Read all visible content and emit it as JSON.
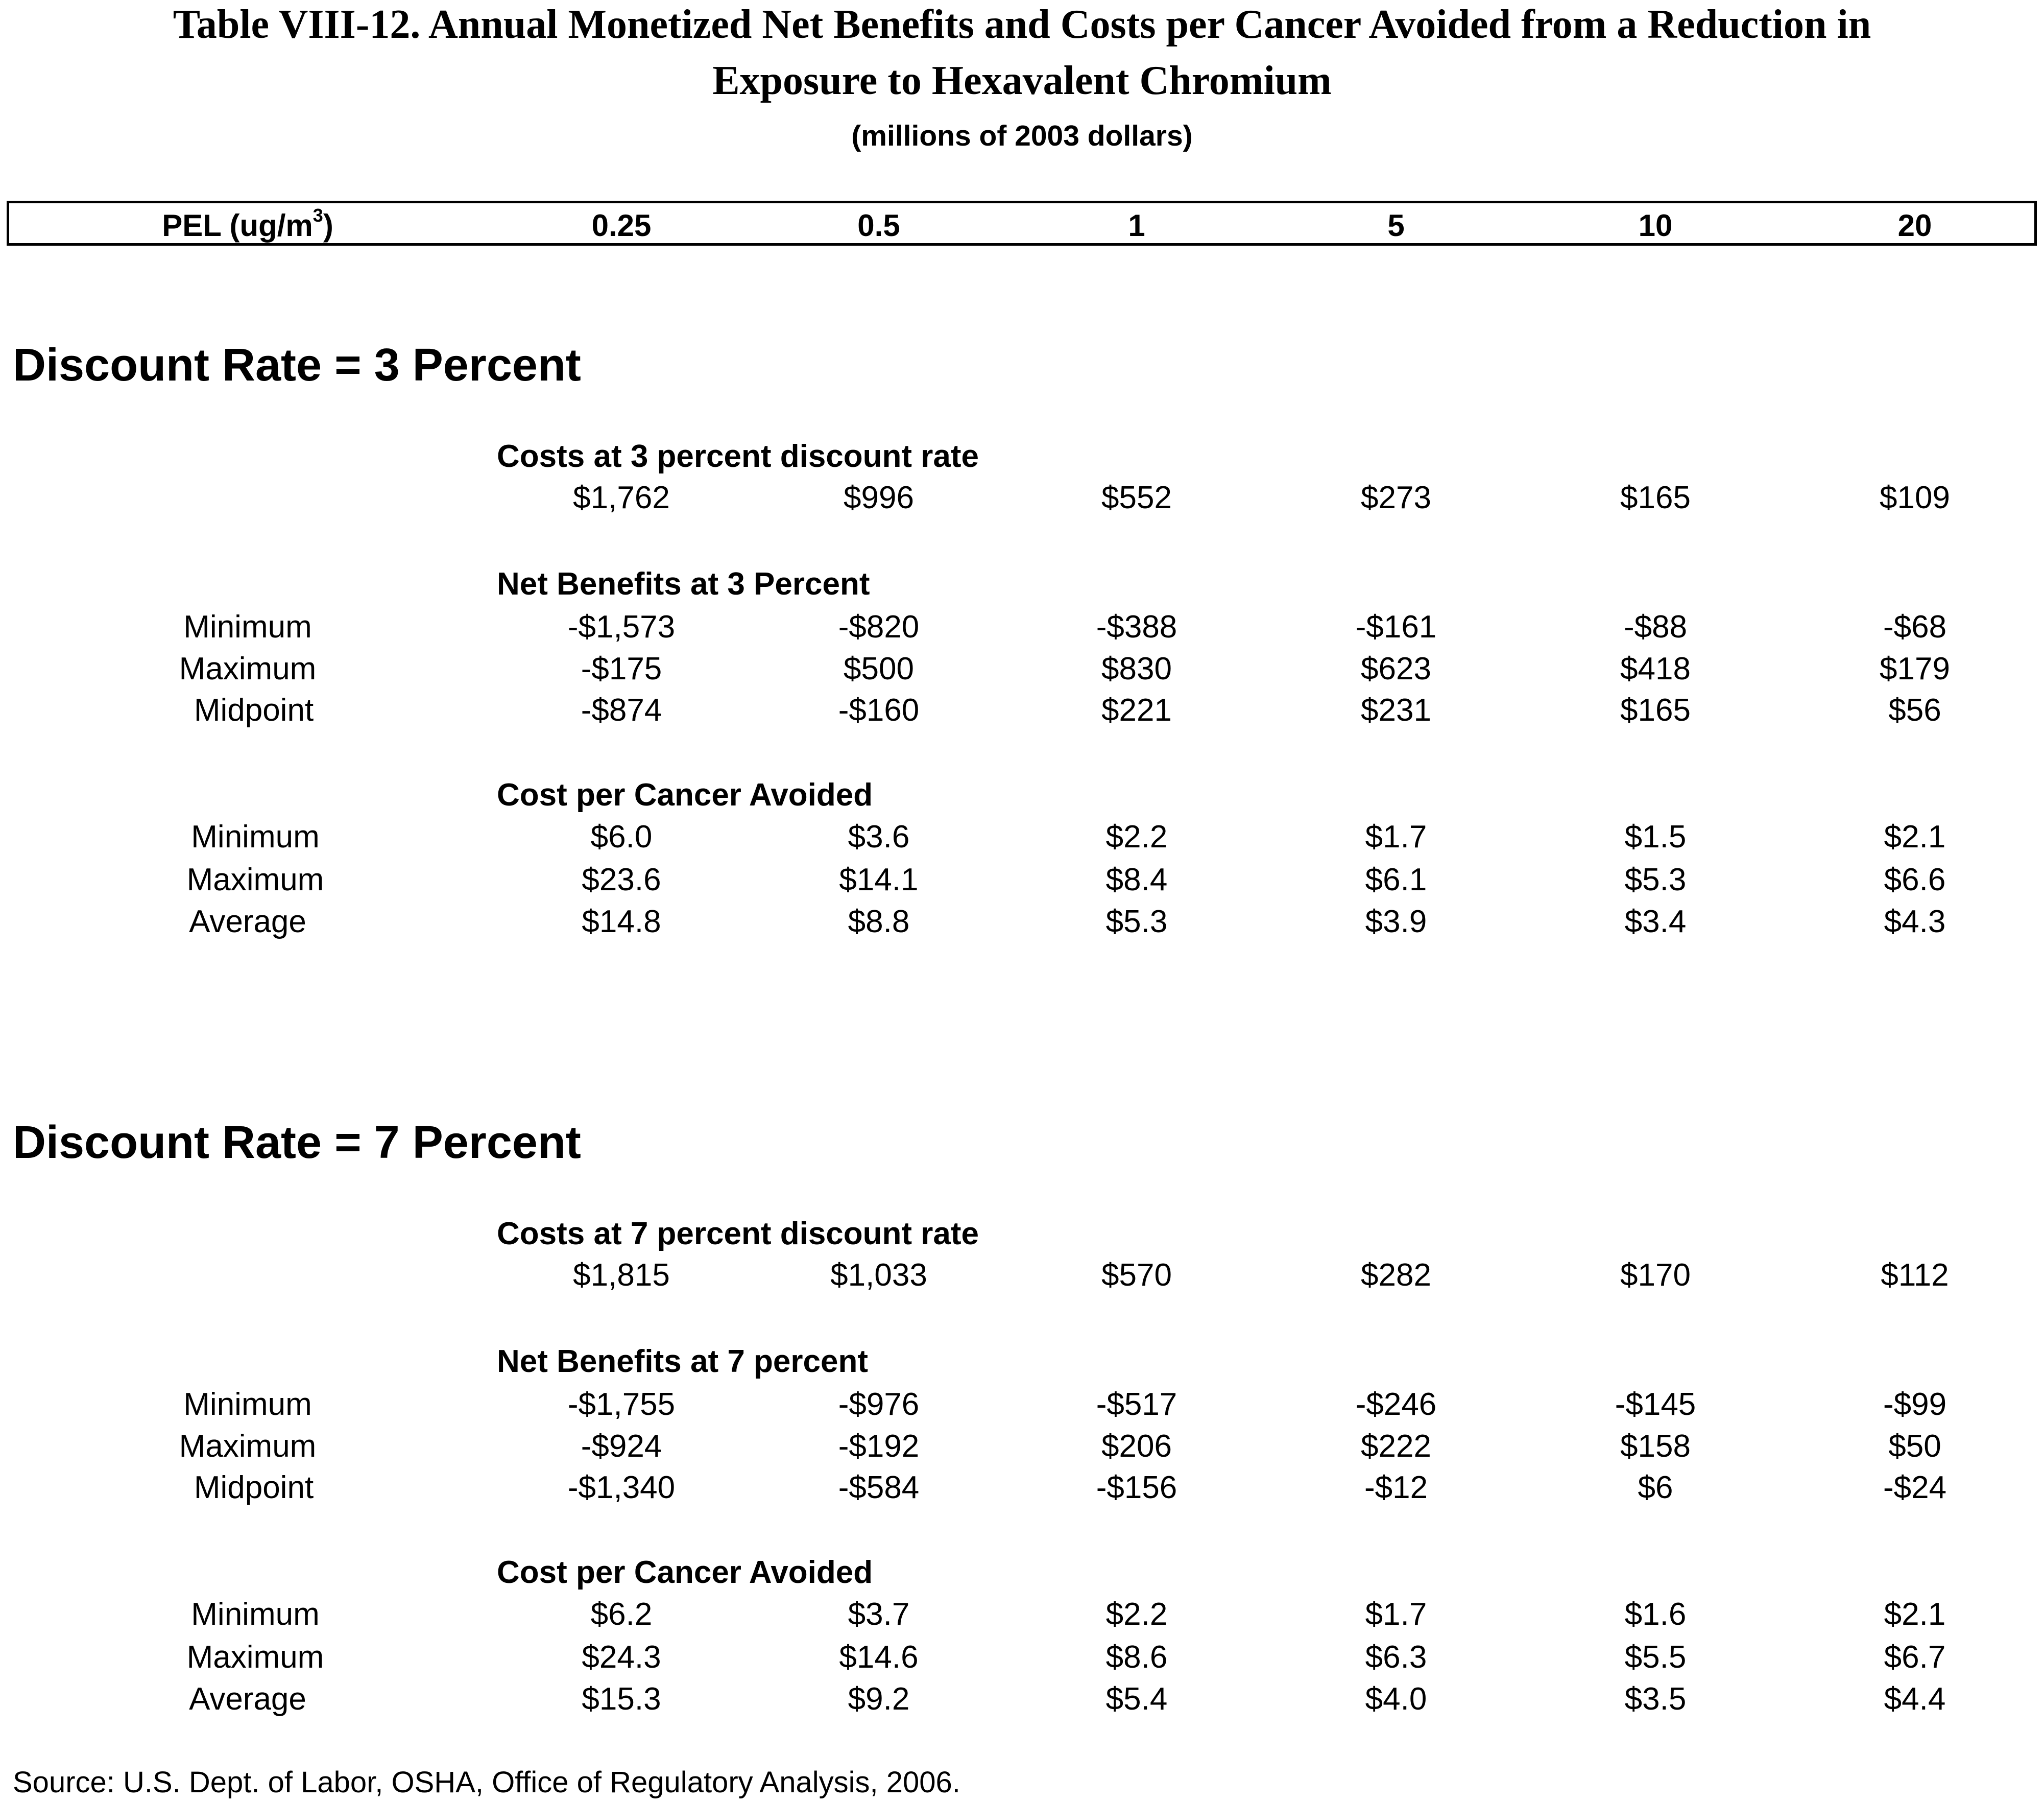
{
  "title_line1": "Table VIII-12.  Annual Monetized Net Benefits and Costs per Cancer Avoided from a Reduction in",
  "title_line2": "Exposure to Hexavalent Chromium",
  "subtitle": "(millions of 2003 dollars)",
  "header": {
    "label": "PEL (ug/m",
    "label_sup": "3",
    "label_close": ")",
    "columns": [
      "0.25",
      "0.5",
      "1",
      "5",
      "10",
      "20"
    ]
  },
  "sections": [
    {
      "heading": "Discount Rate  =  3 Percent",
      "costs_title": "Costs at 3 percent discount rate",
      "costs": [
        "$1,762",
        "$996",
        "$552",
        "$273",
        "$165",
        "$109"
      ],
      "net_title": "Net Benefits at 3 Percent",
      "net_rows": [
        {
          "label": "Minimum",
          "values": [
            "-$1,573",
            "-$820",
            "-$388",
            "-$161",
            "-$88",
            "-$68"
          ]
        },
        {
          "label": "Maximum",
          "values": [
            "-$175",
            "$500",
            "$830",
            "$623",
            "$418",
            "$179"
          ]
        },
        {
          "label": "Midpoint",
          "values": [
            "-$874",
            "-$160",
            "$221",
            "$231",
            "$165",
            "$56"
          ]
        }
      ],
      "cpc_title": "Cost per Cancer Avoided",
      "cpc_rows": [
        {
          "label": "Minimum",
          "values": [
            "$6.0",
            "$3.6",
            "$2.2",
            "$1.7",
            "$1.5",
            "$2.1"
          ]
        },
        {
          "label": "Maximum",
          "values": [
            "$23.6",
            "$14.1",
            "$8.4",
            "$6.1",
            "$5.3",
            "$6.6"
          ]
        },
        {
          "label": "Average",
          "values": [
            "$14.8",
            "$8.8",
            "$5.3",
            "$3.9",
            "$3.4",
            "$4.3"
          ]
        }
      ]
    },
    {
      "heading": "Discount Rate  =  7 Percent",
      "costs_title": "Costs at 7 percent discount rate",
      "costs": [
        "$1,815",
        "$1,033",
        "$570",
        "$282",
        "$170",
        "$112"
      ],
      "net_title": "Net Benefits at 7 percent",
      "net_rows": [
        {
          "label": "Minimum",
          "values": [
            "-$1,755",
            "-$976",
            "-$517",
            "-$246",
            "-$145",
            "-$99"
          ]
        },
        {
          "label": "Maximum",
          "values": [
            "-$924",
            "-$192",
            "$206",
            "$222",
            "$158",
            "$50"
          ]
        },
        {
          "label": "Midpoint",
          "values": [
            "-$1,340",
            "-$584",
            "-$156",
            "-$12",
            "$6",
            "-$24"
          ]
        }
      ],
      "cpc_title": "Cost per Cancer Avoided",
      "cpc_rows": [
        {
          "label": "Minimum",
          "values": [
            "$6.2",
            "$3.7",
            "$2.2",
            "$1.7",
            "$1.6",
            "$2.1"
          ]
        },
        {
          "label": "Maximum",
          "values": [
            "$24.3",
            "$14.6",
            "$8.6",
            "$6.3",
            "$5.5",
            "$6.7"
          ]
        },
        {
          "label": "Average",
          "values": [
            "$15.3",
            "$9.2",
            "$5.4",
            "$4.0",
            "$3.5",
            "$4.4"
          ]
        }
      ]
    }
  ],
  "source": "Source: U.S. Dept. of Labor, OSHA, Office of Regulatory Analysis, 2006."
}
